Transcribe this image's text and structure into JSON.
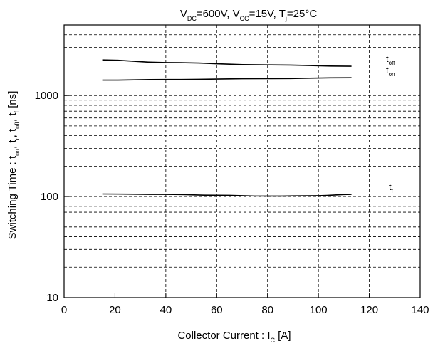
{
  "chart_data": {
    "type": "line",
    "title": {
      "parts": [
        {
          "t": "V",
          "sub": "DC"
        },
        {
          "t": "=600V, V",
          "sub": "CC"
        },
        {
          "t": "=15V, T",
          "sub": "j"
        },
        {
          "t": "=25°C",
          "sub": ""
        }
      ]
    },
    "xlabel": {
      "parts": [
        {
          "t": "Collector Current  :  I",
          "sub": "C"
        },
        {
          "t": "  [A]",
          "sub": ""
        }
      ]
    },
    "ylabel": {
      "parts": [
        {
          "t": "Switching Time :  t",
          "sub": "on"
        },
        {
          "t": ",  t",
          "sub": "r"
        },
        {
          "t": ",  t",
          "sub": "off"
        },
        {
          "t": ",  t",
          "sub": "f"
        },
        {
          "t": "  [ns]",
          "sub": ""
        }
      ]
    },
    "xlim": [
      0,
      140
    ],
    "ylim": [
      10,
      5000
    ],
    "yscale": "log",
    "grid": true,
    "xticks": [
      0,
      20,
      40,
      60,
      80,
      100,
      120,
      140
    ],
    "xtick_labels": [
      "0",
      "20",
      "40",
      "60",
      "80",
      "100",
      "120",
      "140"
    ],
    "yticks": [
      10,
      100,
      1000
    ],
    "ytick_labels": [
      "10",
      "100",
      "1000"
    ],
    "series": [
      {
        "name": {
          "t": "t",
          "sub": "off"
        },
        "x": [
          15,
          40,
          80,
          113
        ],
        "y": [
          2250,
          2120,
          2010,
          1950
        ]
      },
      {
        "name": {
          "t": "t",
          "sub": "on"
        },
        "x": [
          15,
          40,
          80,
          113
        ],
        "y": [
          1420,
          1440,
          1470,
          1500
        ]
      },
      {
        "name": {
          "t": "t",
          "sub": "f"
        },
        "x": [
          15,
          40,
          60,
          80,
          100,
          113
        ],
        "y": [
          106,
          105,
          103,
          101,
          102,
          105
        ]
      }
    ]
  }
}
